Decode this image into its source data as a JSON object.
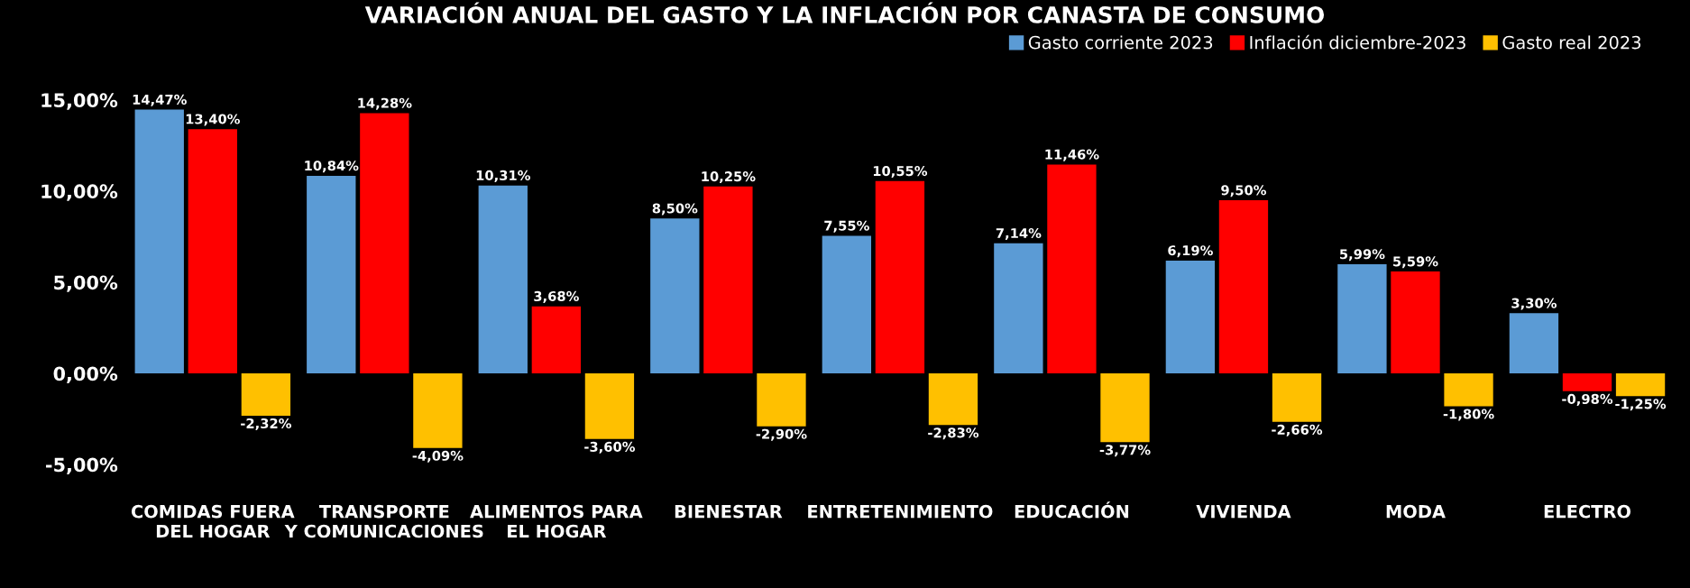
{
  "chart_data": {
    "type": "bar",
    "title": "VARIACIÓN ANUAL DEL GASTO Y LA INFLACIÓN POR CANASTA DE CONSUMO",
    "categories": [
      "COMIDAS FUERA\nDEL HOGAR",
      "TRANSPORTE\nY COMUNICACIONES",
      "ALIMENTOS PARA\nEL HOGAR",
      "BIENESTAR",
      "ENTRETENIMIENTO",
      "EDUCACIÓN",
      "VIVIENDA",
      "MODA",
      "ELECTRO"
    ],
    "series": [
      {
        "name": "Gasto corriente 2023",
        "color": "#5b9bd5",
        "values": [
          14.47,
          10.84,
          10.31,
          8.5,
          7.55,
          7.14,
          6.19,
          5.99,
          3.3
        ],
        "value_labels": [
          "14,47%",
          "10,84%",
          "10,31%",
          "8,50%",
          "7,55%",
          "7,14%",
          "6,19%",
          "5,99%",
          "3,30%"
        ]
      },
      {
        "name": "Inflación diciembre-2023",
        "color": "#ff0000",
        "values": [
          13.4,
          14.28,
          3.68,
          10.25,
          10.55,
          11.46,
          9.5,
          5.59,
          -0.98
        ],
        "value_labels": [
          "13,40%",
          "14,28%",
          "3,68%",
          "10,25%",
          "10,55%",
          "11,46%",
          "9,50%",
          "5,59%",
          "-0,98%"
        ]
      },
      {
        "name": "Gasto real 2023",
        "color": "#ffc000",
        "values": [
          -2.32,
          -4.09,
          -3.6,
          -2.9,
          -2.83,
          -3.77,
          -2.66,
          -1.8,
          -1.25
        ],
        "value_labels": [
          "-2,32%",
          "-4,09%",
          "-3,60%",
          "-2,90%",
          "-2,83%",
          "-3,77%",
          "-2,66%",
          "-1,80%",
          "-1,25%"
        ]
      }
    ],
    "ylim": [
      -5,
      15
    ],
    "yticks": [
      {
        "value": -5,
        "label": "-5,00%"
      },
      {
        "value": 0,
        "label": "0,00%"
      },
      {
        "value": 5,
        "label": "5,00%"
      },
      {
        "value": 10,
        "label": "10,00%"
      },
      {
        "value": 15,
        "label": "15,00%"
      }
    ],
    "legend": "top right",
    "grid": false
  }
}
